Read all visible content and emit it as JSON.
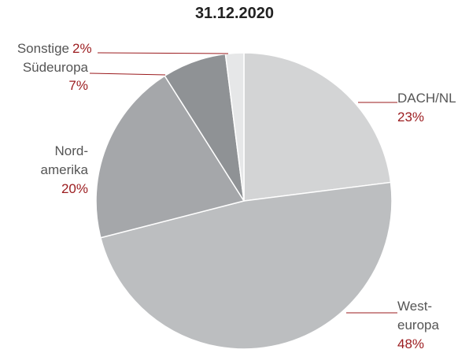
{
  "chart_data": {
    "type": "pie",
    "title": "31.12.2020",
    "categories": [
      "DACH/NL",
      "West-\neuropa",
      "Nord-\namerika",
      "Südeuropa",
      "Sonstige"
    ],
    "values": [
      23,
      48,
      20,
      7,
      2
    ],
    "value_labels": [
      "23%",
      "48%",
      "20%",
      "7%",
      "2%"
    ],
    "colors": [
      "#d3d4d5",
      "#bcbec0",
      "#a5a7aa",
      "#8f9295",
      "#e6e7e8"
    ],
    "label_color": "#9b1b1e"
  }
}
